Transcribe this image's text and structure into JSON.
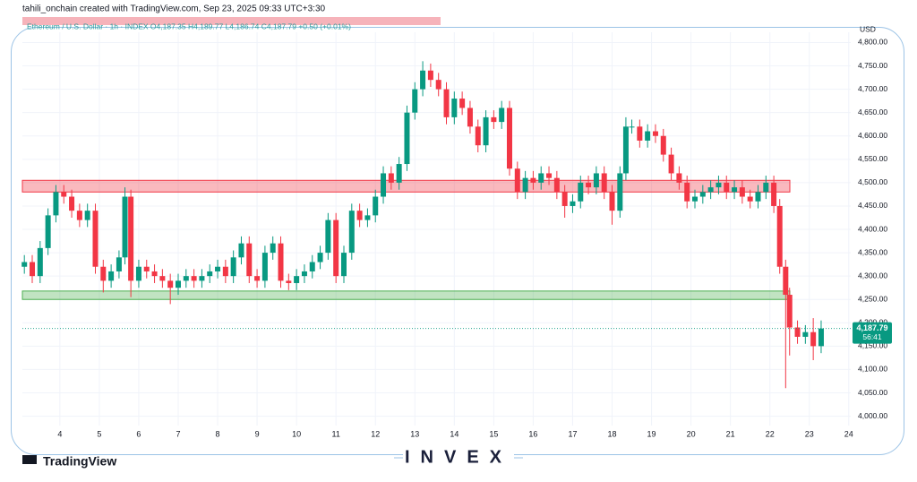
{
  "header": {
    "credit": "tahili_onchain created with TradingView.com, Sep 23, 2025 09:33 UTC+3:30",
    "legend": "Ethereum / U.S. Dollar · 1h · INDEX  O4,187.35  H4,189.77  L4,186.74  C4,187.79  +0.50 (+0.01%)"
  },
  "chart_data": {
    "type": "candlestick",
    "currency": "USD",
    "up_color": "#089981",
    "down_color": "#f23645",
    "xlim": [
      3.05,
      24.05
    ],
    "xticks": [
      4,
      5,
      6,
      7,
      8,
      9,
      10,
      11,
      12,
      13,
      14,
      15,
      16,
      17,
      18,
      19,
      20,
      21,
      22,
      23,
      24
    ],
    "ylim": [
      3980,
      4822
    ],
    "yticks": [
      {
        "value": 4000,
        "label": "4,000.00"
      },
      {
        "value": 4050,
        "label": "4,050.00"
      },
      {
        "value": 4100,
        "label": "4,100.00"
      },
      {
        "value": 4150,
        "label": "4,150.00"
      },
      {
        "value": 4200,
        "label": "4,200.00"
      },
      {
        "value": 4250,
        "label": "4,250.00"
      },
      {
        "value": 4300,
        "label": "4,300.00"
      },
      {
        "value": 4350,
        "label": "4,350.00"
      },
      {
        "value": 4400,
        "label": "4,400.00"
      },
      {
        "value": 4450,
        "label": "4,450.00"
      },
      {
        "value": 4500,
        "label": "4,500.00"
      },
      {
        "value": 4550,
        "label": "4,550.00"
      },
      {
        "value": 4600,
        "label": "4,600.00"
      },
      {
        "value": 4650,
        "label": "4,650.00"
      },
      {
        "value": 4700,
        "label": "4,700.00"
      },
      {
        "value": 4750,
        "label": "4,750.00"
      },
      {
        "value": 4800,
        "label": "4,800.00"
      }
    ],
    "grid": true,
    "zones": [
      {
        "low": 4480,
        "high": 4505,
        "color": "#f23645"
      },
      {
        "low": 4250,
        "high": 4268,
        "color": "#4caf50"
      }
    ],
    "last_price": 4187.79,
    "last_price_label": "4,187.79",
    "countdown": "56:41",
    "x": [
      3.1,
      3.3,
      3.5,
      3.7,
      3.9,
      4.1,
      4.3,
      4.5,
      4.7,
      4.9,
      5.1,
      5.3,
      5.5,
      5.65,
      5.8,
      6.0,
      6.2,
      6.4,
      6.6,
      6.8,
      7.0,
      7.2,
      7.4,
      7.6,
      7.8,
      8.0,
      8.2,
      8.4,
      8.6,
      8.8,
      9.0,
      9.2,
      9.4,
      9.6,
      9.8,
      10.0,
      10.2,
      10.4,
      10.6,
      10.8,
      11.0,
      11.2,
      11.4,
      11.6,
      11.8,
      12.0,
      12.2,
      12.4,
      12.6,
      12.8,
      13.0,
      13.2,
      13.4,
      13.6,
      13.8,
      14.0,
      14.2,
      14.4,
      14.6,
      14.8,
      15.0,
      15.2,
      15.4,
      15.6,
      15.8,
      16.0,
      16.2,
      16.4,
      16.6,
      16.8,
      17.0,
      17.2,
      17.4,
      17.6,
      17.8,
      18.0,
      18.2,
      18.35,
      18.5,
      18.7,
      18.9,
      19.1,
      19.3,
      19.5,
      19.7,
      19.9,
      20.1,
      20.3,
      20.5,
      20.7,
      20.9,
      21.1,
      21.3,
      21.5,
      21.7,
      21.9,
      22.1,
      22.25,
      22.4,
      22.5,
      22.7,
      22.9,
      23.1,
      23.3
    ],
    "open": [
      4320,
      4330,
      4300,
      4360,
      4430,
      4480,
      4470,
      4440,
      4420,
      4440,
      4320,
      4290,
      4310,
      4340,
      4470,
      4290,
      4320,
      4310,
      4300,
      4290,
      4275,
      4290,
      4300,
      4290,
      4300,
      4310,
      4320,
      4300,
      4340,
      4370,
      4300,
      4290,
      4350,
      4370,
      4290,
      4285,
      4300,
      4310,
      4330,
      4350,
      4420,
      4300,
      4350,
      4440,
      4420,
      4430,
      4470,
      4520,
      4500,
      4540,
      4650,
      4700,
      4740,
      4720,
      4700,
      4640,
      4680,
      4660,
      4620,
      4580,
      4640,
      4630,
      4660,
      4530,
      4480,
      4510,
      4500,
      4520,
      4510,
      4480,
      4450,
      4460,
      4500,
      4490,
      4520,
      4480,
      4440,
      4520,
      4620,
      4620,
      4590,
      4610,
      4600,
      4560,
      4520,
      4500,
      4460,
      4470,
      4480,
      4490,
      4500,
      4480,
      4490,
      4470,
      4460,
      4480,
      4500,
      4450,
      4320,
      4260,
      4190,
      4170,
      4180,
      4150
    ],
    "high": [
      4345,
      4345,
      4375,
      4445,
      4495,
      4495,
      4485,
      4455,
      4455,
      4455,
      4335,
      4325,
      4355,
      4490,
      4485,
      4335,
      4335,
      4325,
      4315,
      4305,
      4305,
      4315,
      4315,
      4315,
      4325,
      4335,
      4335,
      4355,
      4385,
      4385,
      4315,
      4365,
      4385,
      4385,
      4305,
      4315,
      4325,
      4345,
      4365,
      4435,
      4435,
      4365,
      4455,
      4455,
      4445,
      4485,
      4535,
      4535,
      4555,
      4665,
      4715,
      4760,
      4755,
      4735,
      4715,
      4695,
      4695,
      4675,
      4635,
      4655,
      4655,
      4675,
      4675,
      4545,
      4525,
      4525,
      4535,
      4535,
      4525,
      4495,
      4475,
      4515,
      4515,
      4535,
      4535,
      4495,
      4535,
      4640,
      4635,
      4635,
      4625,
      4625,
      4615,
      4575,
      4535,
      4515,
      4485,
      4495,
      4505,
      4515,
      4515,
      4505,
      4505,
      4485,
      4495,
      4515,
      4515,
      4465,
      4335,
      4275,
      4205,
      4195,
      4210,
      4205
    ],
    "low": [
      4305,
      4285,
      4285,
      4345,
      4415,
      4455,
      4425,
      4405,
      4405,
      4305,
      4265,
      4275,
      4295,
      4325,
      4255,
      4275,
      4295,
      4285,
      4275,
      4240,
      4260,
      4275,
      4275,
      4275,
      4285,
      4295,
      4285,
      4285,
      4325,
      4285,
      4275,
      4275,
      4335,
      4275,
      4270,
      4270,
      4285,
      4295,
      4315,
      4335,
      4285,
      4285,
      4335,
      4405,
      4405,
      4415,
      4455,
      4485,
      4485,
      4525,
      4635,
      4685,
      4705,
      4685,
      4625,
      4625,
      4645,
      4605,
      4565,
      4565,
      4615,
      4615,
      4515,
      4465,
      4465,
      4485,
      4485,
      4495,
      4465,
      4425,
      4435,
      4445,
      4475,
      4475,
      4465,
      4410,
      4425,
      4505,
      4605,
      4575,
      4575,
      4585,
      4545,
      4505,
      4485,
      4445,
      4445,
      4455,
      4465,
      4475,
      4465,
      4465,
      4455,
      4445,
      4445,
      4465,
      4435,
      4305,
      4060,
      4130,
      4155,
      4155,
      4120,
      4135
    ],
    "close": [
      4330,
      4300,
      4360,
      4430,
      4480,
      4470,
      4440,
      4420,
      4440,
      4320,
      4290,
      4310,
      4340,
      4470,
      4290,
      4320,
      4310,
      4300,
      4290,
      4275,
      4290,
      4300,
      4290,
      4300,
      4310,
      4320,
      4300,
      4340,
      4370,
      4300,
      4290,
      4350,
      4370,
      4290,
      4285,
      4300,
      4310,
      4330,
      4350,
      4420,
      4300,
      4350,
      4440,
      4420,
      4430,
      4470,
      4520,
      4500,
      4540,
      4650,
      4700,
      4740,
      4720,
      4700,
      4640,
      4680,
      4660,
      4620,
      4580,
      4640,
      4630,
      4660,
      4530,
      4480,
      4510,
      4500,
      4520,
      4510,
      4480,
      4450,
      4460,
      4500,
      4490,
      4520,
      4480,
      4440,
      4520,
      4620,
      4620,
      4590,
      4610,
      4600,
      4560,
      4520,
      4500,
      4460,
      4470,
      4480,
      4490,
      4500,
      4480,
      4490,
      4470,
      4460,
      4480,
      4500,
      4450,
      4320,
      4260,
      4190,
      4170,
      4180,
      4150,
      4187.79
    ]
  },
  "footer": {
    "brand": "TradingView",
    "watermark": "INVEX"
  }
}
